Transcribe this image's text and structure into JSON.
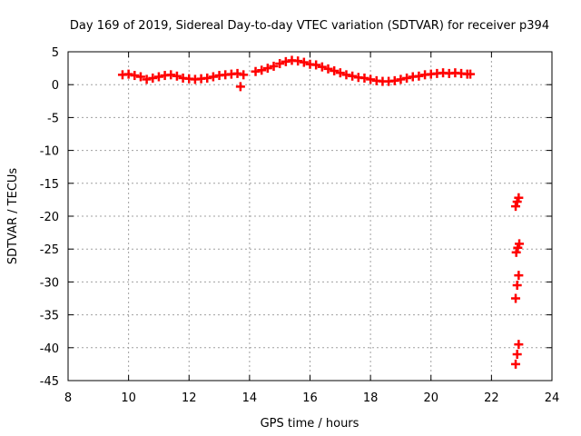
{
  "chart_data": {
    "type": "scatter",
    "title": "Day 169 of 2019, Sidereal Day-to-day VTEC variation (SDTVAR) for receiver p394",
    "xlabel": "GPS time / hours",
    "ylabel": "SDTVAR / TECUs",
    "xlim": [
      8,
      24
    ],
    "ylim": [
      -45,
      5
    ],
    "x_ticks": [
      "8",
      "10",
      "12",
      "14",
      "16",
      "18",
      "20",
      "22",
      "24"
    ],
    "y_ticks": [
      "5",
      "0",
      "-5",
      "-10",
      "-15",
      "-20",
      "-25",
      "-30",
      "-35",
      "-40",
      "-45"
    ],
    "grid": true,
    "marker": "+",
    "series": [
      {
        "name": "SDTVAR",
        "color": "#ff0000",
        "x": [
          9.8,
          10.0,
          10.2,
          10.4,
          10.6,
          10.8,
          11.0,
          11.2,
          11.4,
          11.6,
          11.8,
          12.0,
          12.2,
          12.4,
          12.6,
          12.8,
          13.0,
          13.2,
          13.4,
          13.6,
          13.8,
          13.7,
          14.2,
          14.4,
          14.6,
          14.8,
          15.0,
          15.2,
          15.4,
          15.6,
          15.8,
          16.0,
          16.2,
          16.4,
          16.6,
          16.8,
          17.0,
          17.2,
          17.4,
          17.6,
          17.8,
          18.0,
          18.2,
          18.4,
          18.6,
          18.8,
          19.0,
          19.2,
          19.4,
          19.6,
          19.8,
          20.0,
          20.2,
          20.4,
          20.6,
          20.8,
          21.0,
          21.2,
          21.3,
          22.8,
          22.85,
          22.9,
          22.82,
          22.87,
          22.92,
          22.8,
          22.85,
          22.9,
          22.8,
          22.85,
          22.9
        ],
        "y": [
          1.5,
          1.6,
          1.4,
          1.2,
          0.8,
          1.0,
          1.2,
          1.4,
          1.5,
          1.3,
          1.0,
          0.9,
          0.8,
          0.9,
          1.0,
          1.2,
          1.4,
          1.5,
          1.6,
          1.7,
          1.5,
          -0.3,
          2.0,
          2.2,
          2.5,
          2.8,
          3.2,
          3.5,
          3.7,
          3.6,
          3.4,
          3.1,
          3.0,
          2.7,
          2.4,
          2.1,
          1.8,
          1.5,
          1.3,
          1.1,
          1.0,
          0.8,
          0.6,
          0.5,
          0.5,
          0.6,
          0.8,
          1.0,
          1.2,
          1.3,
          1.5,
          1.6,
          1.7,
          1.8,
          1.7,
          1.8,
          1.7,
          1.6,
          1.6,
          -18.5,
          -17.8,
          -17.2,
          -25.5,
          -24.8,
          -24.2,
          -32.5,
          -30.5,
          -29.0,
          -42.5,
          -41.0,
          -39.5
        ]
      }
    ]
  }
}
